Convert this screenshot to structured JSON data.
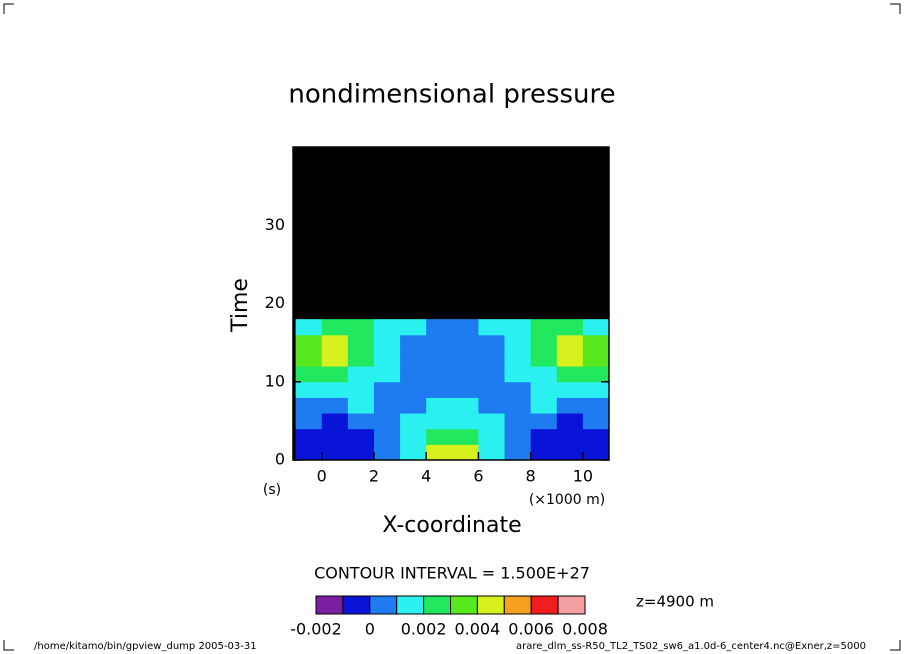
{
  "chart_data": {
    "type": "contour",
    "title": "nondimensional pressure",
    "x_label": "X-coordinate",
    "y_label": "Time",
    "x_unit": "(×1000 m)",
    "y_unit": "(s)",
    "x": [
      -0.5,
      0.5,
      1.5,
      2.5,
      3.5,
      4.5,
      5.5,
      6.5,
      7.5,
      8.5,
      9.5,
      10.5
    ],
    "y": [
      1,
      3,
      5,
      7,
      9,
      11,
      13,
      15,
      17,
      19,
      21,
      23,
      25,
      27,
      29,
      31,
      33,
      35,
      37,
      39
    ],
    "z": [
      [
        -0.0005,
        -0.0005,
        -0.0005,
        0.0005,
        0.0015,
        0.0045,
        0.0045,
        0.0015,
        0.0005,
        -0.0005,
        -0.0005,
        -0.0005
      ],
      [
        -0.0005,
        -0.0005,
        -0.0005,
        0.0005,
        0.0015,
        0.0025,
        0.0025,
        0.0015,
        0.0005,
        -0.0005,
        -0.0005,
        -0.0005
      ],
      [
        0.0005,
        -0.0005,
        0.0005,
        0.0005,
        0.0015,
        0.0015,
        0.0015,
        0.0015,
        0.0005,
        0.0005,
        -0.0005,
        0.0005
      ],
      [
        0.0005,
        0.0005,
        0.0015,
        0.0005,
        0.0005,
        0.0015,
        0.0015,
        0.0005,
        0.0005,
        0.0015,
        0.0005,
        0.0005
      ],
      [
        0.0015,
        0.0015,
        0.0015,
        0.0005,
        0.0005,
        0.0005,
        0.0005,
        0.0005,
        0.0005,
        0.0015,
        0.0015,
        0.0015
      ],
      [
        0.0025,
        0.0025,
        0.0015,
        0.0015,
        0.0005,
        0.0005,
        0.0005,
        0.0005,
        0.0015,
        0.0015,
        0.0025,
        0.0025
      ],
      [
        0.0035,
        0.0045,
        0.0025,
        0.0015,
        0.0005,
        0.0005,
        0.0005,
        0.0005,
        0.0015,
        0.0025,
        0.0045,
        0.0035
      ],
      [
        0.0035,
        0.0045,
        0.0025,
        0.0015,
        0.0005,
        0.0005,
        0.0005,
        0.0005,
        0.0015,
        0.0025,
        0.0045,
        0.0035
      ],
      [
        0.0015,
        0.0025,
        0.0025,
        0.0015,
        0.0015,
        0.0005,
        0.0005,
        0.0015,
        0.0015,
        0.0025,
        0.0025,
        0.0015
      ],
      [
        null,
        null,
        null,
        null,
        null,
        null,
        null,
        null,
        null,
        null,
        null,
        null
      ],
      [
        null,
        null,
        null,
        null,
        null,
        null,
        null,
        null,
        null,
        null,
        null,
        null
      ],
      [
        null,
        null,
        null,
        null,
        null,
        null,
        null,
        null,
        null,
        null,
        null,
        null
      ],
      [
        null,
        null,
        null,
        null,
        null,
        null,
        null,
        null,
        null,
        null,
        null,
        null
      ],
      [
        null,
        null,
        null,
        null,
        null,
        null,
        null,
        null,
        null,
        null,
        null,
        null
      ],
      [
        null,
        null,
        null,
        null,
        null,
        null,
        null,
        null,
        null,
        null,
        null,
        null
      ],
      [
        null,
        null,
        null,
        null,
        null,
        null,
        null,
        null,
        null,
        null,
        null,
        null
      ],
      [
        null,
        null,
        null,
        null,
        null,
        null,
        null,
        null,
        null,
        null,
        null,
        null
      ],
      [
        null,
        null,
        null,
        null,
        null,
        null,
        null,
        null,
        null,
        null,
        null,
        null
      ],
      [
        null,
        null,
        null,
        null,
        null,
        null,
        null,
        null,
        null,
        null,
        null,
        null
      ],
      [
        null,
        null,
        null,
        null,
        null,
        null,
        null,
        null,
        null,
        null,
        null,
        null
      ]
    ],
    "xlim": [
      -1.1,
      11
    ],
    "ylim": [
      0,
      40
    ],
    "xticks": [
      0,
      2,
      4,
      6,
      8,
      10
    ],
    "yticks": [
      0,
      10,
      20,
      30
    ],
    "levels": [
      -0.002,
      -0.001,
      0,
      0.001,
      0.002,
      0.003,
      0.004,
      0.005,
      0.006,
      0.007,
      0.008
    ],
    "colors": [
      "#7a1fa2",
      "#0a14d8",
      "#1e7cf0",
      "#2af0f0",
      "#22e860",
      "#58e81e",
      "#d6f01e",
      "#f5a01e",
      "#f01e1e",
      "#f5a0a0"
    ],
    "colorbar_ticks": [
      -0.002,
      0,
      0.002,
      0.004,
      0.006,
      0.008
    ],
    "contour_interval": "CONTOUR INTERVAL = 1.500E+27",
    "annotation": "z=4900 m"
  },
  "footer": {
    "left": "/home/kitamo/bin/gpview_dump  2005-03-31",
    "right": "arare_dlm_ss-R50_TL2_TS02_sw6_a1.0d-6_center4.nc@Exner,z=5000"
  }
}
